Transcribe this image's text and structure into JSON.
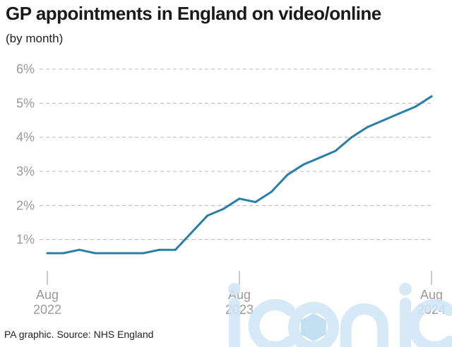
{
  "chart_data": {
    "type": "line",
    "title": "GP appointments in England on video/online",
    "subtitle": "(by month)",
    "source": "PA graphic. Source: NHS England",
    "xlabel": "",
    "ylabel": "",
    "x": [
      "2022-08",
      "2022-09",
      "2022-10",
      "2022-11",
      "2022-12",
      "2023-01",
      "2023-02",
      "2023-03",
      "2023-04",
      "2023-05",
      "2023-06",
      "2023-07",
      "2023-08",
      "2023-09",
      "2023-10",
      "2023-11",
      "2023-12",
      "2024-01",
      "2024-02",
      "2024-03",
      "2024-04",
      "2024-05",
      "2024-06",
      "2024-07",
      "2024-08"
    ],
    "series": [
      {
        "values": [
          0.6,
          0.6,
          0.7,
          0.6,
          0.6,
          0.6,
          0.6,
          0.7,
          0.7,
          1.2,
          1.7,
          1.9,
          2.2,
          2.1,
          2.4,
          2.9,
          3.2,
          3.4,
          3.6,
          4.0,
          4.3,
          4.5,
          4.7,
          4.9,
          5.2
        ]
      }
    ],
    "ylim": [
      0,
      6
    ],
    "yticks": [
      1,
      2,
      3,
      4,
      5,
      6
    ],
    "ytick_labels": [
      "1%",
      "2%",
      "3%",
      "4%",
      "5%",
      "6%"
    ],
    "xtick_labels": [
      {
        "month": "Aug",
        "year": "2022"
      },
      {
        "month": "Aug",
        "year": "2023"
      },
      {
        "month": "Aug",
        "year": "2024"
      }
    ],
    "grid": true,
    "line_color": "#2a7fa8"
  },
  "watermark": {
    "text": "iconic"
  }
}
